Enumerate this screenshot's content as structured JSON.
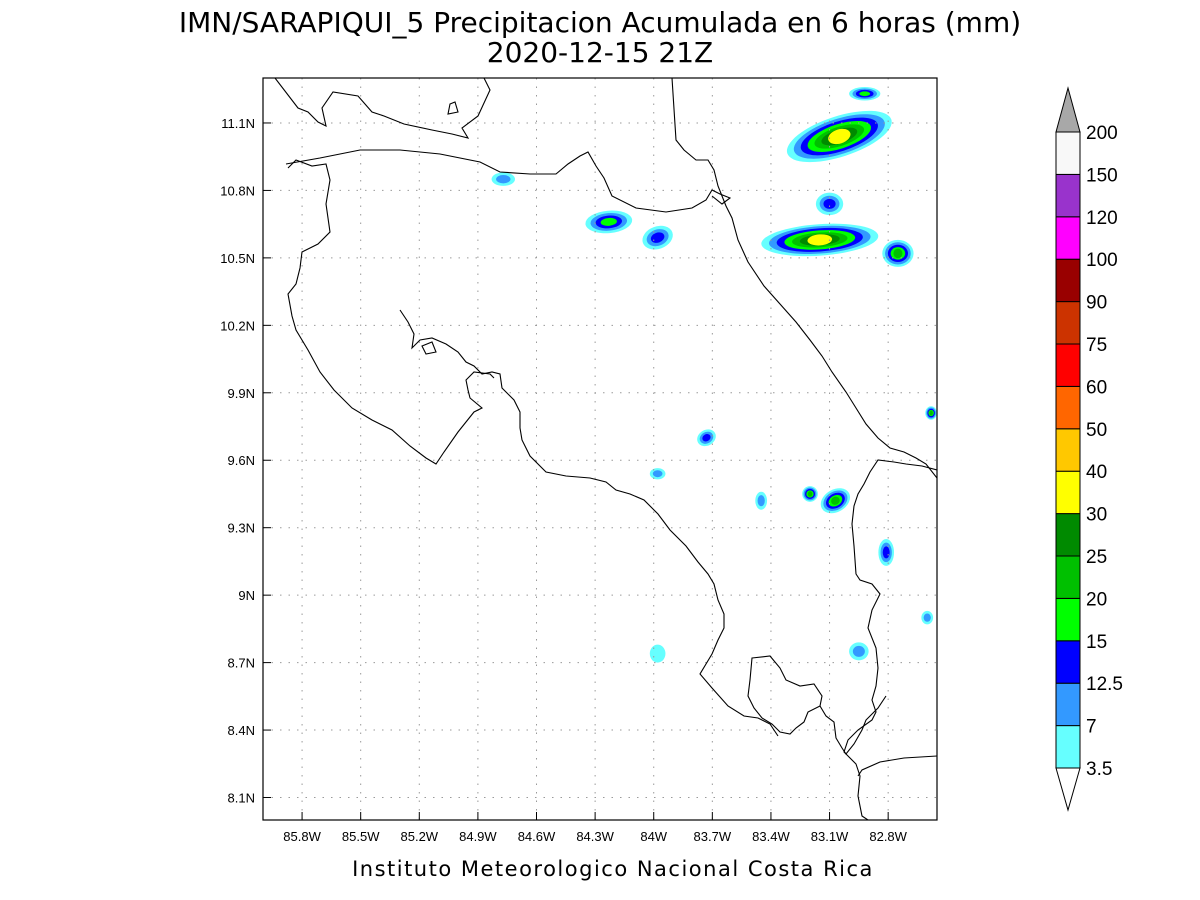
{
  "header": {
    "title": "IMN/SARAPIQUI_5 Precipitacion Acumulada en 6 horas (mm)",
    "subtitle": "2020-12-15 21Z"
  },
  "map": {
    "lon_range": [
      -86.0,
      -82.55
    ],
    "lat_range": [
      8.0,
      11.3
    ],
    "x_ticks": [
      "85.8W",
      "85.5W",
      "85.2W",
      "84.9W",
      "84.6W",
      "84.3W",
      "84W",
      "83.7W",
      "83.4W",
      "83.1W",
      "82.8W"
    ],
    "y_ticks": [
      "8.1N",
      "8.4N",
      "8.7N",
      "9N",
      "9.3N",
      "9.6N",
      "9.9N",
      "10.2N",
      "10.5N",
      "10.8N",
      "11.1N"
    ],
    "grid": "dotted",
    "precip_areas": [
      {
        "lon": -83.05,
        "lat": 11.04,
        "rx": 0.28,
        "ry": 0.09,
        "rot": -18,
        "level": "30"
      },
      {
        "lon": -83.15,
        "lat": 10.58,
        "rx": 0.3,
        "ry": 0.07,
        "rot": -4,
        "level": "30"
      },
      {
        "lon": -82.75,
        "lat": 10.52,
        "rx": 0.08,
        "ry": 0.06,
        "rot": 0,
        "level": "20"
      },
      {
        "lon": -84.23,
        "lat": 10.66,
        "rx": 0.12,
        "ry": 0.05,
        "rot": -5,
        "level": "15"
      },
      {
        "lon": -83.98,
        "lat": 10.59,
        "rx": 0.08,
        "ry": 0.05,
        "rot": -20,
        "level": "12.5"
      },
      {
        "lon": -83.1,
        "lat": 10.74,
        "rx": 0.07,
        "ry": 0.05,
        "rot": 0,
        "level": "12.5"
      },
      {
        "lon": -82.92,
        "lat": 11.23,
        "rx": 0.08,
        "ry": 0.03,
        "rot": 0,
        "level": "15"
      },
      {
        "lon": -84.77,
        "lat": 10.85,
        "rx": 0.06,
        "ry": 0.03,
        "rot": 0,
        "level": "7"
      },
      {
        "lon": -83.73,
        "lat": 9.7,
        "rx": 0.05,
        "ry": 0.035,
        "rot": -30,
        "level": "12.5"
      },
      {
        "lon": -83.07,
        "lat": 9.42,
        "rx": 0.08,
        "ry": 0.05,
        "rot": -30,
        "level": "20"
      },
      {
        "lon": -83.2,
        "lat": 9.45,
        "rx": 0.04,
        "ry": 0.035,
        "rot": 0,
        "level": "20"
      },
      {
        "lon": -82.81,
        "lat": 9.19,
        "rx": 0.04,
        "ry": 0.06,
        "rot": 0,
        "level": "12.5"
      },
      {
        "lon": -82.58,
        "lat": 9.81,
        "rx": 0.03,
        "ry": 0.03,
        "rot": 0,
        "level": "20"
      },
      {
        "lon": -82.6,
        "lat": 8.9,
        "rx": 0.03,
        "ry": 0.03,
        "rot": 0,
        "level": "7"
      },
      {
        "lon": -83.45,
        "lat": 9.42,
        "rx": 0.03,
        "ry": 0.04,
        "rot": 0,
        "level": "7"
      },
      {
        "lon": -83.98,
        "lat": 9.54,
        "rx": 0.04,
        "ry": 0.025,
        "rot": 0,
        "level": "7"
      },
      {
        "lon": -83.98,
        "lat": 8.74,
        "rx": 0.04,
        "ry": 0.04,
        "rot": 0,
        "level": "3.5"
      },
      {
        "lon": -82.95,
        "lat": 8.75,
        "rx": 0.05,
        "ry": 0.04,
        "rot": 0,
        "level": "7"
      }
    ]
  },
  "colorbar": {
    "colors": [
      "#66ffff",
      "#3399ff",
      "#0000ff",
      "#00ff00",
      "#00c000",
      "#008a00",
      "#ffff00",
      "#ffc800",
      "#ff6600",
      "#ff0000",
      "#cc3300",
      "#990000",
      "#ff00ff",
      "#9933cc",
      "#f8f8f8"
    ],
    "labels": [
      "3.5",
      "7",
      "12.5",
      "15",
      "20",
      "25",
      "30",
      "40",
      "50",
      "60",
      "75",
      "90",
      "100",
      "120",
      "150",
      "200"
    ],
    "over_color": "#a8a8a8"
  },
  "footer": {
    "credit": "Instituto Meteorologico Nacional Costa Rica"
  }
}
